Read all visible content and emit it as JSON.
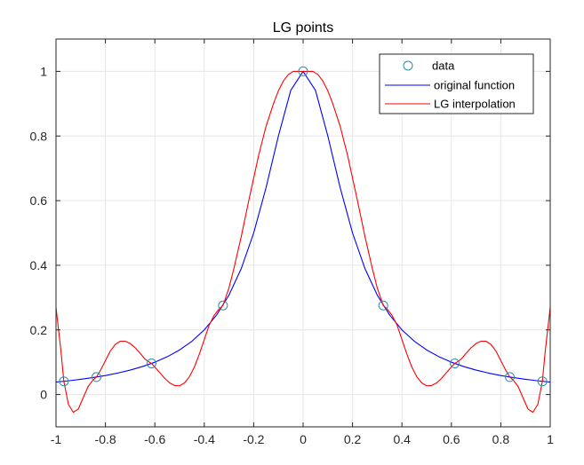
{
  "chart_data": {
    "type": "line",
    "title": "LG points",
    "xlabel": "",
    "ylabel": "",
    "xlim": [
      -1,
      1
    ],
    "ylim": [
      -0.1,
      1.1
    ],
    "xticks": [
      -1,
      -0.8,
      -0.6,
      -0.4,
      -0.2,
      0,
      0.2,
      0.4,
      0.6,
      0.8,
      1
    ],
    "xtick_labels": [
      "-1",
      "-0.8",
      "-0.6",
      "-0.4",
      "-0.2",
      "0",
      "0.2",
      "0.4",
      "0.6",
      "0.8",
      "1"
    ],
    "yticks": [
      0,
      0.2,
      0.4,
      0.6,
      0.8,
      1
    ],
    "ytick_labels": [
      "0",
      "0.2",
      "0.4",
      "0.6",
      "0.8",
      "1"
    ],
    "grid": true,
    "legend_position": "top-right",
    "series": [
      {
        "name": "data",
        "kind": "markers",
        "marker": "circle",
        "color": "#2E8FA8",
        "x": [
          -0.9682,
          -0.8364,
          -0.6134,
          -0.3243,
          0,
          0.3243,
          0.6134,
          0.8364,
          0.9682
        ],
        "y": [
          0.0409,
          0.0541,
          0.0962,
          0.2755,
          1.0,
          0.2755,
          0.0962,
          0.0541,
          0.0409
        ]
      },
      {
        "name": "original function",
        "kind": "line",
        "color": "#0000FF",
        "function": "1/(1+25x^2)",
        "x": [
          -1,
          -0.95,
          -0.9,
          -0.85,
          -0.8,
          -0.75,
          -0.7,
          -0.65,
          -0.6,
          -0.55,
          -0.5,
          -0.45,
          -0.4,
          -0.35,
          -0.3,
          -0.25,
          -0.2,
          -0.15,
          -0.1,
          -0.05,
          0,
          0.05,
          0.1,
          0.15,
          0.2,
          0.25,
          0.3,
          0.35,
          0.4,
          0.45,
          0.5,
          0.55,
          0.6,
          0.65,
          0.7,
          0.75,
          0.8,
          0.85,
          0.9,
          0.95,
          1
        ],
        "y": [
          0.0385,
          0.0424,
          0.0471,
          0.0525,
          0.0588,
          0.0664,
          0.0755,
          0.0865,
          0.1,
          0.1168,
          0.1379,
          0.1649,
          0.2,
          0.2462,
          0.3077,
          0.3902,
          0.5,
          0.64,
          0.8,
          0.9412,
          1.0,
          0.9412,
          0.8,
          0.64,
          0.5,
          0.3902,
          0.3077,
          0.2462,
          0.2,
          0.1649,
          0.1379,
          0.1168,
          0.1,
          0.0865,
          0.0755,
          0.0664,
          0.0588,
          0.0525,
          0.0471,
          0.0424,
          0.0385
        ]
      },
      {
        "name": "LG interpolation",
        "kind": "line",
        "color": "#FF0000",
        "x": [
          -1,
          -0.98,
          -0.9682,
          -0.95,
          -0.93,
          -0.91,
          -0.89,
          -0.87,
          -0.85,
          -0.8364,
          -0.82,
          -0.8,
          -0.78,
          -0.76,
          -0.74,
          -0.72,
          -0.7,
          -0.68,
          -0.66,
          -0.64,
          -0.62,
          -0.6134,
          -0.6,
          -0.58,
          -0.56,
          -0.54,
          -0.52,
          -0.5,
          -0.48,
          -0.46,
          -0.44,
          -0.42,
          -0.4,
          -0.38,
          -0.36,
          -0.34,
          -0.3243,
          -0.3,
          -0.28,
          -0.25,
          -0.22,
          -0.2,
          -0.18,
          -0.15,
          -0.12,
          -0.1,
          -0.08,
          -0.06,
          -0.04,
          -0.02,
          0,
          0.02,
          0.04,
          0.06,
          0.08,
          0.1,
          0.12,
          0.15,
          0.18,
          0.2,
          0.22,
          0.25,
          0.28,
          0.3,
          0.3243,
          0.34,
          0.36,
          0.38,
          0.4,
          0.42,
          0.44,
          0.46,
          0.48,
          0.5,
          0.52,
          0.54,
          0.56,
          0.58,
          0.6,
          0.6134,
          0.62,
          0.64,
          0.66,
          0.68,
          0.7,
          0.72,
          0.74,
          0.76,
          0.78,
          0.8,
          0.82,
          0.8364,
          0.85,
          0.87,
          0.89,
          0.91,
          0.93,
          0.95,
          0.9682,
          0.98,
          1
        ],
        "y": [
          0.27,
          0.135,
          0.0409,
          -0.03,
          -0.055,
          -0.045,
          -0.01,
          0.025,
          0.045,
          0.0541,
          0.075,
          0.105,
          0.135,
          0.155,
          0.165,
          0.165,
          0.158,
          0.145,
          0.128,
          0.11,
          0.099,
          0.0962,
          0.085,
          0.068,
          0.05,
          0.036,
          0.028,
          0.027,
          0.036,
          0.055,
          0.085,
          0.125,
          0.17,
          0.215,
          0.245,
          0.265,
          0.2755,
          0.33,
          0.39,
          0.49,
          0.6,
          0.67,
          0.74,
          0.83,
          0.9,
          0.94,
          0.97,
          0.99,
          1.0,
          1.0,
          1.0,
          1.0,
          1.0,
          0.99,
          0.97,
          0.94,
          0.9,
          0.83,
          0.74,
          0.67,
          0.6,
          0.49,
          0.39,
          0.33,
          0.2755,
          0.265,
          0.245,
          0.215,
          0.17,
          0.125,
          0.085,
          0.055,
          0.036,
          0.027,
          0.028,
          0.036,
          0.05,
          0.068,
          0.085,
          0.0962,
          0.099,
          0.11,
          0.128,
          0.145,
          0.158,
          0.165,
          0.165,
          0.155,
          0.135,
          0.105,
          0.075,
          0.0541,
          0.045,
          0.025,
          -0.01,
          -0.045,
          -0.055,
          -0.03,
          0.0409,
          0.135,
          0.27
        ]
      }
    ]
  },
  "colors": {
    "background": "#FFFFFF",
    "axes": "#262626",
    "grid": "#E6E6E6",
    "marker": "#2E8FA8",
    "original": "#0000FF",
    "interpolation": "#FF0000"
  }
}
